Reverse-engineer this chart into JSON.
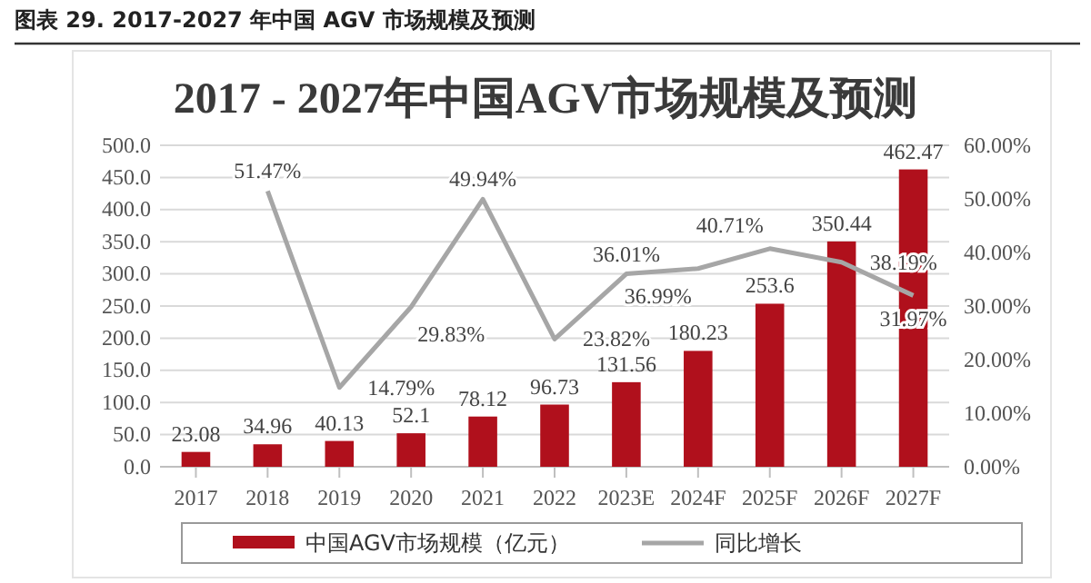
{
  "chart_data": {
    "type": "bar",
    "title": "2017 - 2027年中国AGV市场规模及预测",
    "annotations": [
      "图表 29. 2017-2027 年中国 AGV 市场规模及预测"
    ],
    "categories": [
      "2017",
      "2018",
      "2019",
      "2020",
      "2021",
      "2022",
      "2023E",
      "2024F",
      "2025F",
      "2026F",
      "2027F"
    ],
    "series": [
      {
        "name": "中国AGV市场规模（亿元）",
        "color": "#b0101c",
        "values": [
          23.08,
          34.96,
          40.13,
          52.1,
          78.12,
          96.73,
          131.56,
          180.23,
          253.6,
          350.44,
          462.47
        ],
        "value_labels": [
          "23.08",
          "34.96",
          "40.13",
          "52.1",
          "78.12",
          "96.73",
          "131.56",
          "180.23",
          "253.6",
          "350.44",
          "462.47"
        ]
      },
      {
        "name": "同比增长",
        "type": "line",
        "axis": "y2",
        "color": "#a6a6a6",
        "values": [
          null,
          51.47,
          14.79,
          29.83,
          49.94,
          23.82,
          36.01,
          36.99,
          40.71,
          38.19,
          31.97
        ],
        "value_labels": [
          null,
          "51.47%",
          "14.79%",
          "29.83%",
          "49.94%",
          "23.82%",
          "36.01%",
          "36.99%",
          "40.71%",
          "38.19%",
          "31.97%"
        ]
      }
    ],
    "ylim": [
      0,
      500
    ],
    "yticks": [
      {
        "value": 0,
        "label": "0.0"
      },
      {
        "value": 50,
        "label": "50.0"
      },
      {
        "value": 100,
        "label": "100.0"
      },
      {
        "value": 150,
        "label": "150.0"
      },
      {
        "value": 200,
        "label": "200.0"
      },
      {
        "value": 250,
        "label": "250.0"
      },
      {
        "value": 300,
        "label": "300.0"
      },
      {
        "value": 350,
        "label": "350.0"
      },
      {
        "value": 400,
        "label": "400.0"
      },
      {
        "value": 450,
        "label": "450.0"
      },
      {
        "value": 500,
        "label": "500.0"
      }
    ],
    "y2lim": [
      0,
      60
    ],
    "y2ticks": [
      {
        "value": 0,
        "label": "0.00%"
      },
      {
        "value": 10,
        "label": "10.00%"
      },
      {
        "value": 20,
        "label": "20.00%"
      },
      {
        "value": 30,
        "label": "30.00%"
      },
      {
        "value": 40,
        "label": "40.00%"
      },
      {
        "value": 50,
        "label": "50.00%"
      },
      {
        "value": 60,
        "label": "60.00%"
      }
    ],
    "grid": "y",
    "legend": "bottom",
    "marker": "none",
    "line_style": "solid"
  }
}
